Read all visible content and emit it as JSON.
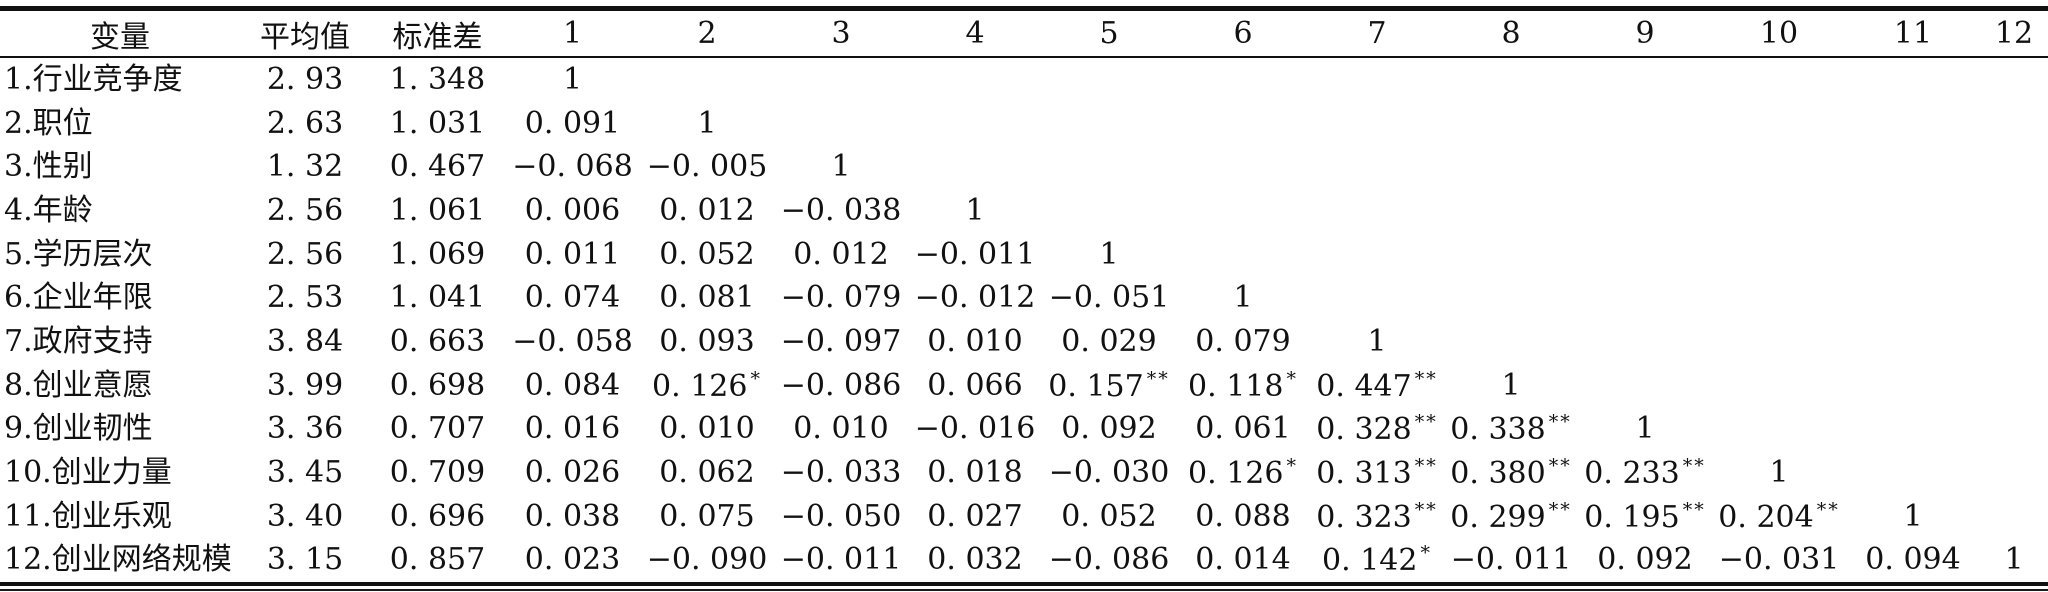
{
  "colors": {
    "text": "#111111",
    "rule": "#111111",
    "background": "#ffffff"
  },
  "table": {
    "columns": [
      "变量",
      "平均值",
      "标准差",
      "1",
      "2",
      "3",
      "4",
      "5",
      "6",
      "7",
      "8",
      "9",
      "10",
      "11",
      "12"
    ],
    "rows": [
      {
        "label": "1.行业竞争度",
        "mean": "2. 93",
        "sd": "1. 348",
        "corr": [
          "1"
        ]
      },
      {
        "label": "2.职位",
        "mean": "2. 63",
        "sd": "1. 031",
        "corr": [
          "0. 091",
          "1"
        ]
      },
      {
        "label": "3.性别",
        "mean": "1. 32",
        "sd": "0. 467",
        "corr": [
          "−0. 068",
          "−0. 005",
          "1"
        ]
      },
      {
        "label": "4.年龄",
        "mean": "2. 56",
        "sd": "1. 061",
        "corr": [
          "0. 006",
          "0. 012",
          "−0. 038",
          "1"
        ]
      },
      {
        "label": "5.学历层次",
        "mean": "2. 56",
        "sd": "1. 069",
        "corr": [
          "0. 011",
          "0. 052",
          "0. 012",
          "−0. 011",
          "1"
        ]
      },
      {
        "label": "6.企业年限",
        "mean": "2. 53",
        "sd": "1. 041",
        "corr": [
          "0. 074",
          "0. 081",
          "−0. 079",
          "−0. 012",
          "−0. 051",
          "1"
        ]
      },
      {
        "label": "7.政府支持",
        "mean": "3. 84",
        "sd": "0. 663",
        "corr": [
          "−0. 058",
          "0. 093",
          "−0. 097",
          "0. 010",
          "0. 029",
          "0. 079",
          "1"
        ]
      },
      {
        "label": "8.创业意愿",
        "mean": "3. 99",
        "sd": "0. 698",
        "corr": [
          "0. 084",
          "0. 126*",
          "−0. 086",
          "0. 066",
          "0. 157**",
          "0. 118*",
          "0. 447**",
          "1"
        ]
      },
      {
        "label": "9.创业韧性",
        "mean": "3. 36",
        "sd": "0. 707",
        "corr": [
          "0. 016",
          "0. 010",
          "0. 010",
          "−0. 016",
          "0. 092",
          "0. 061",
          "0. 328**",
          "0. 338**",
          "1"
        ]
      },
      {
        "label": "10.创业力量",
        "mean": "3. 45",
        "sd": "0. 709",
        "corr": [
          "0. 026",
          "0. 062",
          "−0. 033",
          "0. 018",
          "−0. 030",
          "0. 126*",
          "0. 313**",
          "0. 380**",
          "0. 233**",
          "1"
        ]
      },
      {
        "label": "11.创业乐观",
        "mean": "3. 40",
        "sd": "0. 696",
        "corr": [
          "0. 038",
          "0. 075",
          "−0. 050",
          "0. 027",
          "0. 052",
          "0. 088",
          "0. 323**",
          "0. 299**",
          "0. 195**",
          "0. 204**",
          "1"
        ]
      },
      {
        "label": "12.创业网络规模",
        "mean": "3. 15",
        "sd": "0. 857",
        "corr": [
          "0. 023",
          "−0. 090",
          "−0. 011",
          "0. 032",
          "−0. 086",
          "0. 014",
          "0. 142*",
          "−0. 011",
          "0. 092",
          "−0. 031",
          "0. 094",
          "1"
        ]
      }
    ]
  }
}
